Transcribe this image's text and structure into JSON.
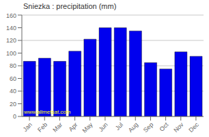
{
  "chart_data": {
    "type": "bar",
    "title": "Sniezka : precipitation (mm)",
    "categories": [
      "Jan",
      "Feb",
      "Mar",
      "Apr",
      "May",
      "Jun",
      "Jul",
      "Aug",
      "Sep",
      "Oct",
      "Nov",
      "Dec"
    ],
    "values": [
      87,
      92,
      87,
      103,
      122,
      140,
      140,
      135,
      85,
      75,
      102,
      95
    ],
    "color": "#0000ee",
    "ylim": [
      0,
      160
    ],
    "yticks": [
      0,
      20,
      40,
      60,
      80,
      100,
      120,
      140,
      160
    ],
    "grid": true,
    "annotations": [
      "www.allmetsat.com"
    ]
  }
}
